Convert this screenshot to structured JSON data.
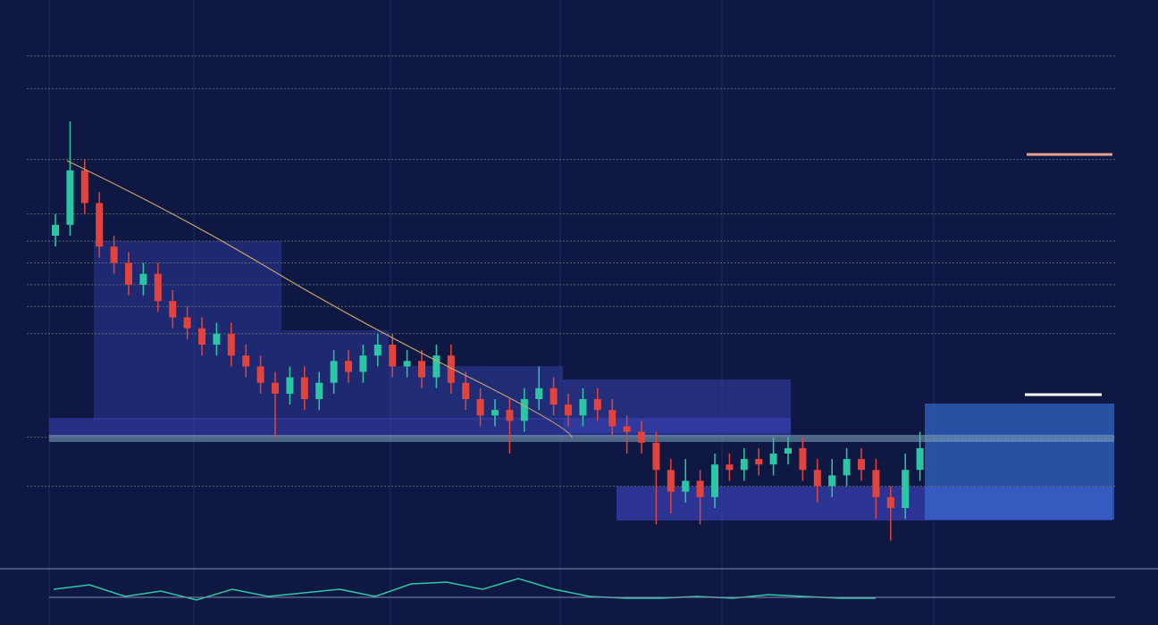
{
  "chart_data": {
    "type": "candlestick",
    "open": [
      60,
      62,
      72,
      66,
      58,
      55,
      51,
      53,
      48,
      45,
      43,
      40,
      42,
      38,
      36,
      33,
      31,
      34,
      30,
      33,
      37,
      35,
      38,
      40,
      36,
      37,
      34,
      38,
      33,
      30,
      27,
      28,
      26,
      30,
      32,
      29,
      27,
      30,
      28,
      25,
      24,
      22,
      17,
      13,
      15,
      12,
      18,
      17,
      19,
      18,
      20,
      21,
      17,
      14,
      16,
      19,
      17,
      12,
      10,
      17
    ],
    "high": [
      64,
      81,
      74,
      68,
      60,
      57,
      55,
      55,
      50,
      47,
      45,
      44,
      44,
      40,
      38,
      35,
      36,
      36,
      35,
      39,
      39,
      40,
      42,
      42,
      39,
      39,
      40,
      40,
      35,
      32,
      30,
      30,
      32,
      36,
      34,
      31,
      32,
      32,
      30,
      27,
      26,
      24,
      19,
      19,
      17,
      20,
      20,
      21,
      21,
      23,
      23,
      23,
      19,
      19,
      21,
      21,
      19,
      14,
      20,
      24
    ],
    "low": [
      58,
      60,
      64,
      56,
      53,
      49,
      49,
      46,
      43,
      41,
      38,
      38,
      36,
      34,
      31,
      23,
      29,
      28,
      28,
      31,
      33,
      33,
      36,
      34,
      34,
      32,
      32,
      31,
      28,
      25,
      25,
      20,
      24,
      28,
      27,
      25,
      25,
      26,
      23,
      20,
      20,
      7,
      9,
      11,
      7,
      10,
      15,
      15,
      16,
      16,
      18,
      15,
      11,
      12,
      14,
      15,
      8,
      4,
      8,
      15
    ],
    "close": [
      62,
      72,
      66,
      58,
      55,
      51,
      53,
      48,
      45,
      43,
      40,
      42,
      38,
      36,
      33,
      31,
      34,
      30,
      33,
      37,
      35,
      38,
      40,
      36,
      37,
      34,
      38,
      33,
      30,
      27,
      28,
      26,
      30,
      32,
      29,
      27,
      30,
      28,
      25,
      24,
      22,
      17,
      13,
      15,
      12,
      18,
      17,
      19,
      18,
      20,
      21,
      17,
      14,
      16,
      19,
      17,
      12,
      10,
      17,
      21
    ],
    "up_color": "#2bc7a4",
    "down_color": "#e2433c",
    "ylim": [
      0,
      100
    ],
    "yticks": [
      14,
      23,
      42,
      47,
      51,
      55,
      59,
      64,
      74,
      87,
      93
    ],
    "grid": true
  }
}
